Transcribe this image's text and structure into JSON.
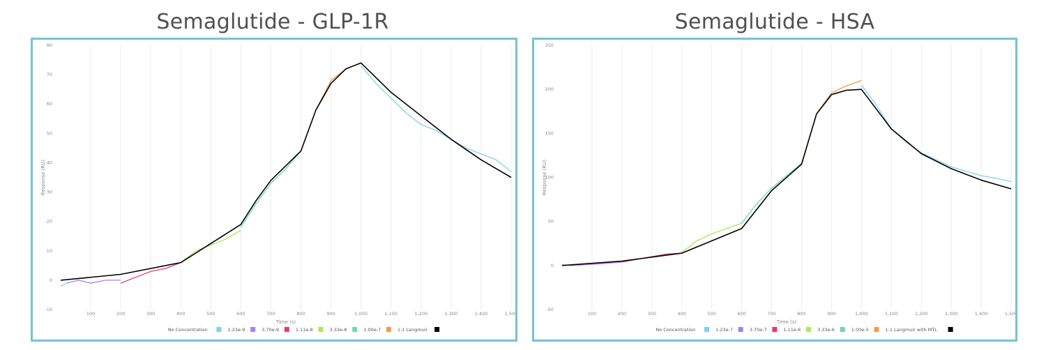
{
  "chart_data": [
    {
      "type": "line",
      "title": "Semaglutide - GLP-1R",
      "xlabel": "Time (s)",
      "ylabel": "Response (RU)",
      "xlim": [
        0,
        1500
      ],
      "ylim": [
        -10,
        80
      ],
      "x_ticks": [
        "100",
        "200",
        "300",
        "400",
        "500",
        "600",
        "700",
        "800",
        "900",
        "1,000",
        "1,100",
        "1,200",
        "1,300",
        "1,400",
        "1,500"
      ],
      "y_ticks": [
        "-10",
        "0",
        "10",
        "20",
        "30",
        "40",
        "50",
        "60",
        "70",
        "80"
      ],
      "grid": "vertical",
      "legend_position": "bottom",
      "legend": [
        {
          "label": "No Concentration",
          "color": "#7fd0ef"
        },
        {
          "label": "1.23e-9",
          "color": "#a87ff0"
        },
        {
          "label": "3.70e-9",
          "color": "#f0346a"
        },
        {
          "label": "1.11e-8",
          "color": "#a8ea5a"
        },
        {
          "label": "3.33e-8",
          "color": "#6fd8b0"
        },
        {
          "label": "1.00e-7",
          "color": "#f59a4a"
        },
        {
          "label": "1:1 Langmuir",
          "color": "#000000"
        }
      ],
      "series": [
        {
          "name": "No Concentration",
          "x": [
            0,
            20
          ],
          "y": [
            -2,
            -1
          ]
        },
        {
          "name": "1.23e-9",
          "x": [
            20,
            60,
            100,
            150,
            200
          ],
          "y": [
            -1,
            0,
            -1,
            0,
            0
          ]
        },
        {
          "name": "3.70e-9",
          "x": [
            200,
            250,
            300,
            350,
            400
          ],
          "y": [
            -1,
            1,
            3,
            4,
            6
          ]
        },
        {
          "name": "1.11e-8",
          "x": [
            400,
            450,
            500,
            550,
            600
          ],
          "y": [
            6,
            10,
            12,
            14,
            17
          ]
        },
        {
          "name": "3.33e-8",
          "x": [
            600,
            650,
            700,
            750,
            800
          ],
          "y": [
            18,
            26,
            33,
            38,
            44
          ]
        },
        {
          "name": "1.00e-7",
          "x": [
            800,
            850,
            900,
            950,
            1000
          ],
          "y": [
            44,
            58,
            68,
            72,
            74
          ]
        },
        {
          "name": "No Concentration",
          "x": [
            1000,
            1050,
            1100,
            1150,
            1200,
            1250,
            1300,
            1350,
            1400,
            1450,
            1500
          ],
          "y": [
            73,
            67,
            62,
            57,
            53,
            51,
            48,
            45,
            43,
            41,
            37
          ]
        },
        {
          "name": "1:1 Langmuir",
          "x": [
            0,
            200,
            400,
            600,
            650,
            700,
            800,
            850,
            900,
            950,
            1000,
            1100,
            1200,
            1300,
            1400,
            1500
          ],
          "y": [
            0,
            2,
            6,
            19,
            27,
            34,
            44,
            58,
            67,
            72,
            74,
            64,
            56,
            48,
            41,
            35
          ]
        }
      ]
    },
    {
      "type": "line",
      "title": "Semaglutide - HSA",
      "xlabel": "Time (s)",
      "ylabel": "Response (RU)",
      "xlim": [
        0,
        1500
      ],
      "ylim": [
        -50,
        250
      ],
      "x_ticks": [
        "100",
        "200",
        "300",
        "400",
        "500",
        "600",
        "700",
        "800",
        "900",
        "1,000",
        "1,100",
        "1,200",
        "1,300",
        "1,400",
        "1,500"
      ],
      "y_ticks": [
        "-50",
        "0",
        "50",
        "100",
        "150",
        "200",
        "250"
      ],
      "grid": "vertical",
      "legend_position": "bottom",
      "legend": [
        {
          "label": "No Concentration",
          "color": "#7fd0ef"
        },
        {
          "label": "1.23e-7",
          "color": "#a87ff0"
        },
        {
          "label": "3.70e-7",
          "color": "#f0346a"
        },
        {
          "label": "1.11e-6",
          "color": "#a8ea5a"
        },
        {
          "label": "3.33e-6",
          "color": "#6fd8b0"
        },
        {
          "label": "1.00e-5",
          "color": "#f59a4a"
        },
        {
          "label": "1:1 Langmuir with MTL",
          "color": "#000000"
        }
      ],
      "series": [
        {
          "name": "No Concentration",
          "x": [
            0,
            30
          ],
          "y": [
            1,
            0
          ]
        },
        {
          "name": "1.23e-7",
          "x": [
            30,
            80,
            130,
            200
          ],
          "y": [
            0,
            1,
            2,
            4
          ]
        },
        {
          "name": "3.70e-7",
          "x": [
            200,
            250,
            300,
            350,
            400
          ],
          "y": [
            4,
            7,
            10,
            13,
            14
          ]
        },
        {
          "name": "1.11e-6",
          "x": [
            400,
            450,
            500,
            550,
            600
          ],
          "y": [
            15,
            28,
            36,
            42,
            48
          ]
        },
        {
          "name": "3.33e-6",
          "x": [
            600,
            650,
            700,
            750,
            800
          ],
          "y": [
            48,
            70,
            88,
            102,
            116
          ]
        },
        {
          "name": "1.00e-5",
          "x": [
            800,
            850,
            900,
            950,
            1000
          ],
          "y": [
            116,
            172,
            196,
            204,
            210
          ]
        },
        {
          "name": "No Concentration",
          "x": [
            1000,
            1050,
            1100,
            1150,
            1200,
            1250,
            1300,
            1350,
            1400,
            1450,
            1500
          ],
          "y": [
            205,
            182,
            155,
            140,
            128,
            120,
            112,
            107,
            102,
            99,
            95
          ]
        },
        {
          "name": "1:1 Langmuir with MTL",
          "x": [
            0,
            200,
            400,
            600,
            700,
            800,
            850,
            900,
            950,
            1000,
            1100,
            1200,
            1300,
            1400,
            1500
          ],
          "y": [
            0,
            5,
            14,
            42,
            85,
            115,
            172,
            194,
            199,
            200,
            155,
            127,
            110,
            97,
            87
          ]
        }
      ]
    }
  ]
}
